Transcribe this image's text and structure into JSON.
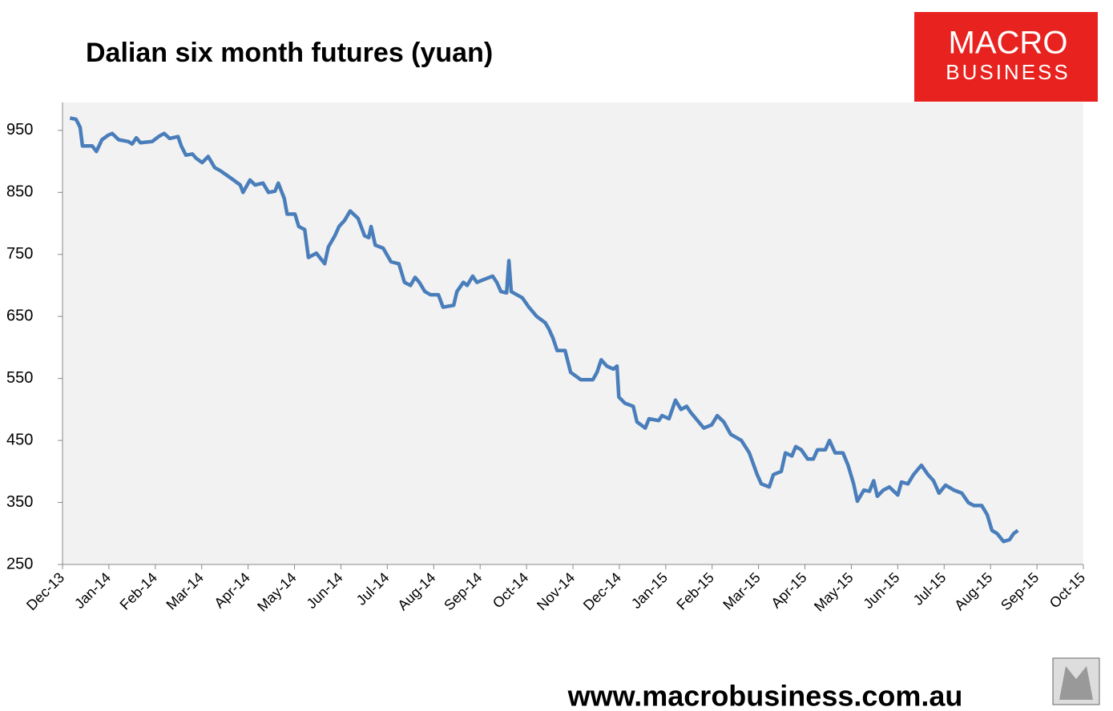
{
  "chart_data": {
    "type": "line",
    "title": "Dalian six month futures (yuan)",
    "x": [
      0.16,
      0.29,
      0.38,
      0.43,
      0.64,
      0.73,
      0.85,
      0.98,
      1.07,
      1.21,
      1.42,
      1.5,
      1.59,
      1.68,
      1.93,
      2.07,
      2.19,
      2.31,
      2.49,
      2.56,
      2.66,
      2.8,
      2.88,
      3.01,
      3.14,
      3.28,
      3.4,
      3.63,
      3.83,
      3.89,
      4.04,
      4.15,
      4.32,
      4.44,
      4.58,
      4.65,
      4.78,
      4.84,
      5.01,
      5.09,
      5.22,
      5.3,
      5.47,
      5.65,
      5.73,
      5.87,
      5.96,
      6.08,
      6.2,
      6.37,
      6.51,
      6.6,
      6.65,
      6.74,
      6.91,
      7.08,
      7.25,
      7.37,
      7.5,
      7.6,
      7.69,
      7.81,
      7.93,
      8.1,
      8.2,
      8.43,
      8.5,
      8.64,
      8.72,
      8.84,
      8.93,
      9.1,
      9.27,
      9.36,
      9.45,
      9.57,
      9.62,
      9.67,
      9.79,
      9.91,
      10.05,
      10.22,
      10.4,
      10.48,
      10.57,
      10.66,
      10.83,
      10.95,
      11.17,
      11.43,
      11.52,
      11.61,
      11.73,
      11.87,
      11.95,
      11.99,
      12.12,
      12.3,
      12.38,
      12.56,
      12.64,
      12.85,
      12.92,
      13.07,
      13.21,
      13.33,
      13.45,
      13.54,
      13.71,
      13.82,
      13.99,
      14.11,
      14.25,
      14.4,
      14.63,
      14.8,
      14.97,
      15.06,
      15.23,
      15.32,
      15.49,
      15.58,
      15.72,
      15.8,
      15.92,
      16.06,
      16.18,
      16.27,
      16.44,
      16.53,
      16.65,
      16.82,
      16.93,
      17.05,
      17.13,
      17.27,
      17.39,
      17.48,
      17.56,
      17.69,
      17.82,
      18.0,
      18.08,
      18.22,
      18.34,
      18.51,
      18.65,
      18.77,
      18.89,
      19.03,
      19.21,
      19.38,
      19.52,
      19.64,
      19.81,
      19.93,
      20.03,
      20.14,
      20.28,
      20.41,
      20.5,
      20.59
    ],
    "values": [
      970,
      968,
      955,
      925,
      925,
      916,
      935,
      942,
      945,
      935,
      932,
      928,
      938,
      930,
      932,
      940,
      945,
      937,
      940,
      925,
      910,
      912,
      905,
      898,
      908,
      890,
      885,
      873,
      862,
      850,
      870,
      862,
      865,
      850,
      852,
      865,
      840,
      815,
      815,
      795,
      790,
      745,
      752,
      735,
      762,
      780,
      795,
      805,
      820,
      808,
      780,
      777,
      795,
      765,
      760,
      738,
      735,
      705,
      700,
      713,
      705,
      690,
      685,
      685,
      665,
      668,
      690,
      705,
      700,
      715,
      705,
      710,
      715,
      705,
      690,
      688,
      740,
      690,
      685,
      680,
      665,
      650,
      640,
      630,
      615,
      595,
      595,
      560,
      548,
      548,
      560,
      580,
      570,
      565,
      570,
      520,
      510,
      505,
      480,
      470,
      485,
      482,
      490,
      485,
      515,
      500,
      505,
      495,
      480,
      470,
      475,
      490,
      480,
      460,
      450,
      430,
      395,
      380,
      375,
      395,
      400,
      430,
      425,
      440,
      435,
      420,
      420,
      435,
      435,
      450,
      430,
      430,
      410,
      380,
      352,
      370,
      368,
      385,
      360,
      370,
      375,
      362,
      383,
      380,
      395,
      410,
      395,
      385,
      365,
      378,
      370,
      365,
      350,
      345,
      345,
      330,
      305,
      300,
      287,
      290,
      300,
      305
    ],
    "color": "#4a7ebb",
    "xlim": [
      0,
      22
    ],
    "xticks": [
      {
        "value": 0,
        "label": "Dec-13"
      },
      {
        "value": 1,
        "label": "Jan-14"
      },
      {
        "value": 2,
        "label": "Feb-14"
      },
      {
        "value": 3,
        "label": "Mar-14"
      },
      {
        "value": 4,
        "label": "Apr-14"
      },
      {
        "value": 5,
        "label": "May-14"
      },
      {
        "value": 6,
        "label": "Jun-14"
      },
      {
        "value": 7,
        "label": "Jul-14"
      },
      {
        "value": 8,
        "label": "Aug-14"
      },
      {
        "value": 9,
        "label": "Sep-14"
      },
      {
        "value": 10,
        "label": "Oct-14"
      },
      {
        "value": 11,
        "label": "Nov-14"
      },
      {
        "value": 12,
        "label": "Dec-14"
      },
      {
        "value": 13,
        "label": "Jan-15"
      },
      {
        "value": 14,
        "label": "Feb-15"
      },
      {
        "value": 15,
        "label": "Mar-15"
      },
      {
        "value": 16,
        "label": "Apr-15"
      },
      {
        "value": 17,
        "label": "May-15"
      },
      {
        "value": 18,
        "label": "Jun-15"
      },
      {
        "value": 19,
        "label": "Jul-15"
      },
      {
        "value": 20,
        "label": "Aug-15"
      },
      {
        "value": 21,
        "label": "Sep-15"
      },
      {
        "value": 22,
        "label": "Oct-15"
      }
    ],
    "ylim": [
      250,
      995
    ],
    "yticks": [
      250,
      350,
      450,
      550,
      650,
      750,
      850,
      950
    ],
    "grid": false
  },
  "logo": {
    "line1": "MACRO",
    "line2": "BUSINESS"
  },
  "footer": "www.macrobusiness.com.au"
}
